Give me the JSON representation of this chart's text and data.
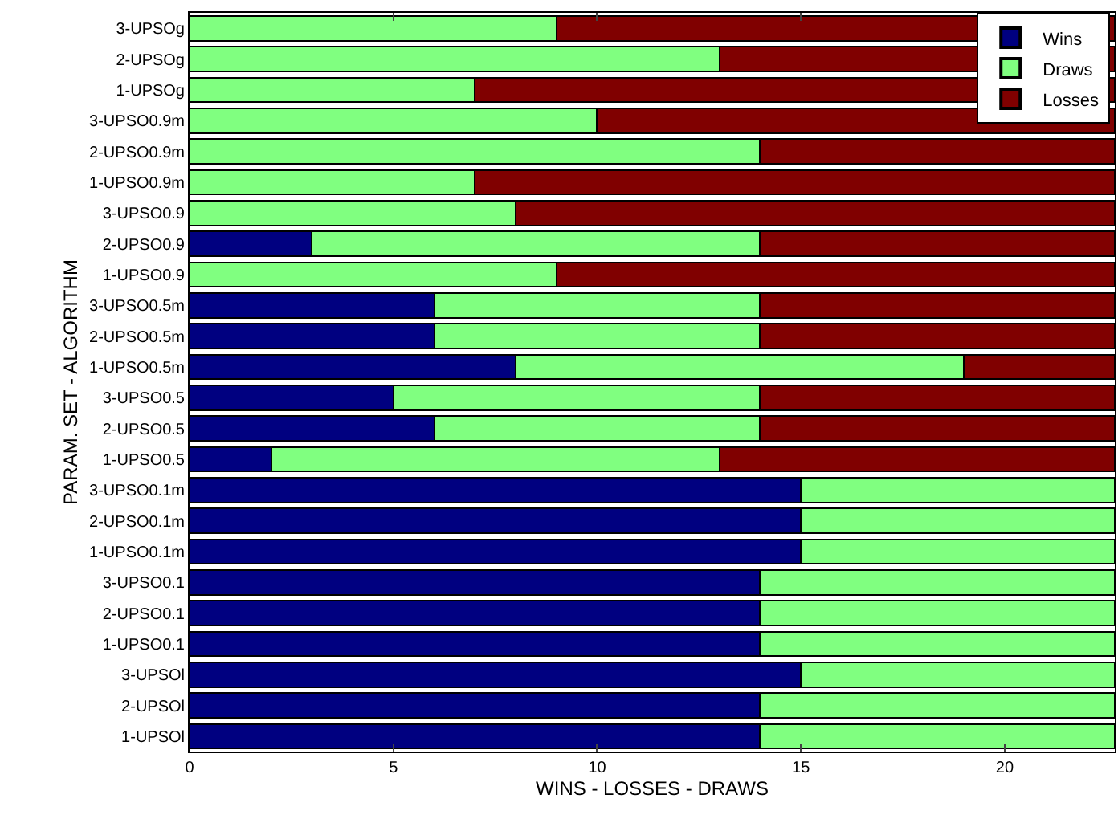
{
  "chart_data": {
    "type": "bar",
    "orientation": "horizontal",
    "stacked": true,
    "xlabel": "WINS - LOSSES - DRAWS",
    "ylabel": "PARAM. SET - ALGORITHM",
    "categories": [
      "3-UPSOg",
      "2-UPSOg",
      "1-UPSOg",
      "3-UPSO0.9m",
      "2-UPSO0.9m",
      "1-UPSO0.9m",
      "3-UPSO0.9",
      "2-UPSO0.9",
      "1-UPSO0.9",
      "3-UPSO0.5m",
      "2-UPSO0.5m",
      "1-UPSO0.5m",
      "3-UPSO0.5",
      "2-UPSO0.5",
      "1-UPSO0.5",
      "3-UPSO0.1m",
      "2-UPSO0.1m",
      "1-UPSO0.1m",
      "3-UPSO0.1",
      "2-UPSO0.1",
      "1-UPSO0.1",
      "3-UPSOl",
      "2-UPSOl",
      "1-UPSOl"
    ],
    "series": [
      {
        "name": "Wins",
        "color": "#000080",
        "values": [
          0,
          0,
          0,
          0,
          0,
          0,
          0,
          3,
          0,
          6,
          6,
          8,
          5,
          6,
          2,
          15,
          15,
          15,
          14,
          14,
          14,
          15,
          14,
          14
        ]
      },
      {
        "name": "Draws",
        "color": "#80ff80",
        "values": [
          9,
          13,
          7,
          10,
          14,
          7,
          8,
          11,
          9,
          8,
          8,
          11,
          9,
          8,
          11,
          7.7,
          7.7,
          7.7,
          8.7,
          8.7,
          8.7,
          7.7,
          8.7,
          8.7
        ]
      },
      {
        "name": "Losses",
        "color": "#800000",
        "values": [
          13.7,
          9.7,
          15.7,
          12.7,
          8.7,
          15.7,
          14.7,
          8.7,
          13.7,
          8.7,
          8.7,
          3.7,
          8.7,
          8.7,
          9.7,
          0,
          0,
          0,
          0,
          0,
          0,
          0,
          0,
          0
        ]
      }
    ],
    "xlim": [
      0,
      22.7
    ],
    "xticks": [
      0,
      5,
      10,
      15,
      20
    ],
    "legend": "top right"
  }
}
